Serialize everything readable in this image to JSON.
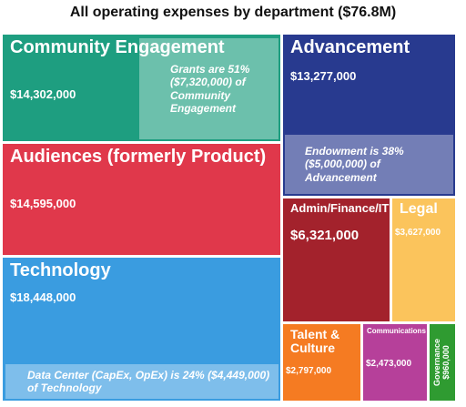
{
  "chart_data": {
    "type": "treemap",
    "title": "All operating expenses by department ($76.8M)",
    "categories": [
      "Community Engagement",
      "Advancement",
      "Audiences (formerly Product)",
      "Technology",
      "Admin/Finance/IT",
      "Legal",
      "Talent & Culture",
      "Communications",
      "Governance"
    ],
    "values": [
      14302000,
      13277000,
      14595000,
      18448000,
      6321000,
      3627000,
      2797000,
      2473000,
      960000
    ],
    "value_labels": [
      "$14,302,000",
      "$13,277,000",
      "$14,595,000",
      "$18,448,000",
      "$6,321,000",
      "$3,627,000",
      "$2,797,000",
      "$2,473,000",
      "$960,000"
    ],
    "colors": [
      "#1e9e80",
      "#283a8f",
      "#e0384b",
      "#3a9ce0",
      "#a3222c",
      "#fbc45c",
      "#f57b22",
      "#b6409a",
      "#2f9b31"
    ],
    "notes": [
      "Grants are 51% ($7,320,000) of Community Engagement",
      "Endowment is 38% ($5,000,000) of Advancement",
      null,
      "Data Center (CapEx, OpEx) is 24% ($4,449,000) of Technology",
      null,
      null,
      null,
      null,
      null
    ]
  }
}
